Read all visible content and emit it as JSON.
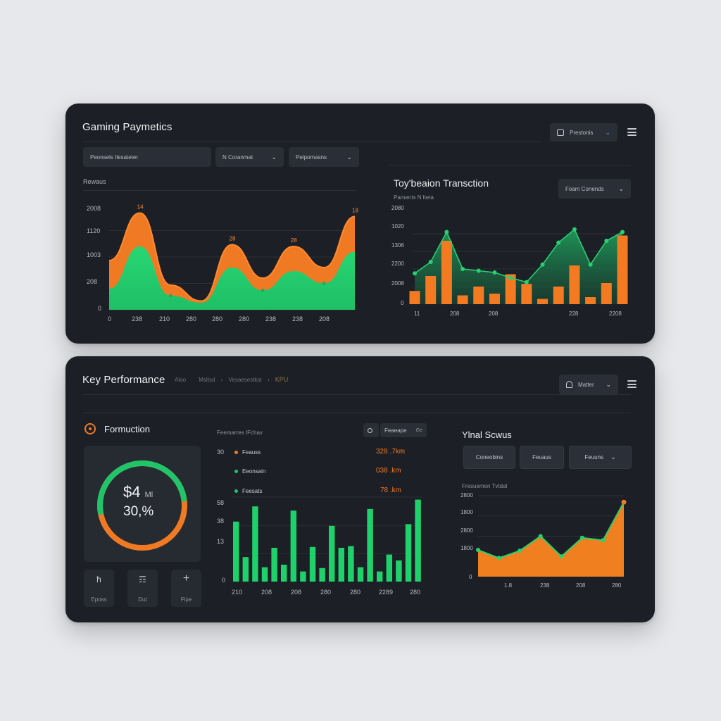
{
  "colors": {
    "orange": "#f07a24",
    "green": "#22c46a",
    "panel": "#1c1f25",
    "control": "#2a2e36"
  },
  "top": {
    "title": "Gaming Paymetics",
    "user_button": "Prestonis",
    "user_icon": "user-icon",
    "menu_icon": "hamburger-menu-icon",
    "filters": [
      {
        "label": "Peonsels Ilesateter",
        "chevron": ""
      },
      {
        "label": "N Coranmat",
        "chevron": "⌄"
      },
      {
        "label": "Pelpomasns",
        "chevron": "⌄"
      }
    ],
    "area_chart": {
      "label": "Rewaus",
      "y_ticks": [
        "2008",
        "1120",
        "1003",
        "208",
        "0"
      ],
      "x_ticks": [
        "0",
        "238",
        "210",
        "280",
        "280",
        "280",
        "238",
        "238",
        "208"
      ],
      "peak_labels": [
        "14",
        "28",
        "28",
        "18"
      ]
    },
    "combo_chart": {
      "title": "Toy'beaion Transction",
      "subtitle": "Paments N lteta",
      "dropdown": "Foam Conends",
      "y_ticks": [
        "2080",
        "1020",
        "1306",
        "2200",
        "2008",
        "0"
      ],
      "x_ticks": [
        "11",
        "208",
        "208",
        "228",
        "2208"
      ]
    }
  },
  "bottom": {
    "title": "Key Performance",
    "breadcrumb": [
      "Aloo",
      "Msltsd",
      "Vesaesestkst",
      "KPU"
    ],
    "user_button": "Matter",
    "user_icon": "bell-icon",
    "menu_icon": "hamburger-menu-icon",
    "gauge": {
      "section_title": "Formuction",
      "value_main": "$4",
      "value_suffix": "  Ml",
      "value_percent": "30,%",
      "percent": 30
    },
    "tiles": [
      {
        "icon": "ħ",
        "label": "Eposs"
      },
      {
        "icon": "☶",
        "label": "Dut"
      },
      {
        "icon": "+",
        "label": "Fipe"
      }
    ],
    "bar_chart": {
      "header": "Feemarres IFchav",
      "search_button": "Feaeape",
      "search_badge": "Ge",
      "legend": [
        {
          "tick": "30",
          "label": "Feauss",
          "value": "328 .7km",
          "color": "#f07a24"
        },
        {
          "tick": "",
          "label": "Eeonsain",
          "value": "038 .km",
          "color": "#22c46a"
        },
        {
          "tick": "",
          "label": "Feesats",
          "value": "78 .km",
          "color": "#22c46a"
        }
      ],
      "y_ticks": [
        "58",
        "38",
        "13",
        "0"
      ],
      "x_ticks": [
        "210",
        "208",
        "208",
        "280",
        "280",
        "2289",
        "280"
      ]
    },
    "right_chart": {
      "title": "Ylnal Scwus",
      "buttons": [
        {
          "label": "Coneobins",
          "chevron": ""
        },
        {
          "label": "Feuaus",
          "chevron": ""
        },
        {
          "label": "Feuuns",
          "chevron": "⌄"
        }
      ],
      "subtitle": "Fresuemen Tvtdal",
      "y_ticks": [
        "2800",
        "1800",
        "2800",
        "1800",
        "0"
      ],
      "x_ticks": [
        "1.8",
        "238",
        "208",
        "280"
      ]
    }
  },
  "chart_data": [
    {
      "type": "area",
      "title": "Rewaus",
      "x": [
        0,
        1,
        2,
        3,
        4,
        5,
        6,
        7,
        8
      ],
      "series": [
        {
          "values": [
            1.4,
            2.75,
            0.7,
            0.25,
            1.85,
            0.9,
            1.8,
            1.2,
            2.65
          ]
        },
        {
          "values": [
            0.6,
            1.8,
            0.4,
            0.2,
            1.2,
            0.55,
            1.1,
            0.75,
            1.65
          ]
        }
      ],
      "ylim": [
        0,
        3
      ]
    },
    {
      "type": "bar",
      "title": "Toy'beaion Transction",
      "bars": [
        0.15,
        0.32,
        0.72,
        0.1,
        0.2,
        0.12,
        0.34,
        0.23,
        0.06,
        0.2,
        0.44,
        0.08,
        0.24,
        0.78
      ],
      "series": [
        {
          "values": [
            0.35,
            0.48,
            0.82,
            0.4,
            0.38,
            0.36,
            0.3,
            0.25,
            0.45,
            0.7,
            0.85,
            0.45,
            0.72,
            0.82
          ]
        }
      ],
      "ylim": [
        0,
        1
      ]
    },
    {
      "type": "bar",
      "title": "Feemarres IFchav",
      "values": [
        0.71,
        0.29,
        0.89,
        0.17,
        0.4,
        0.2,
        0.84,
        0.12,
        0.41,
        0.16,
        0.66,
        0.4,
        0.42,
        0.17,
        0.86,
        0.12,
        0.32,
        0.25,
        0.68,
        0.97
      ],
      "ylim": [
        0,
        1
      ]
    },
    {
      "type": "area",
      "title": "Fresuemen Tvtdal",
      "series": [
        {
          "values": [
            0.33,
            0.23,
            0.32,
            0.5,
            0.25,
            0.48,
            0.45,
            0.92
          ]
        }
      ],
      "ylim": [
        0,
        1
      ]
    }
  ]
}
